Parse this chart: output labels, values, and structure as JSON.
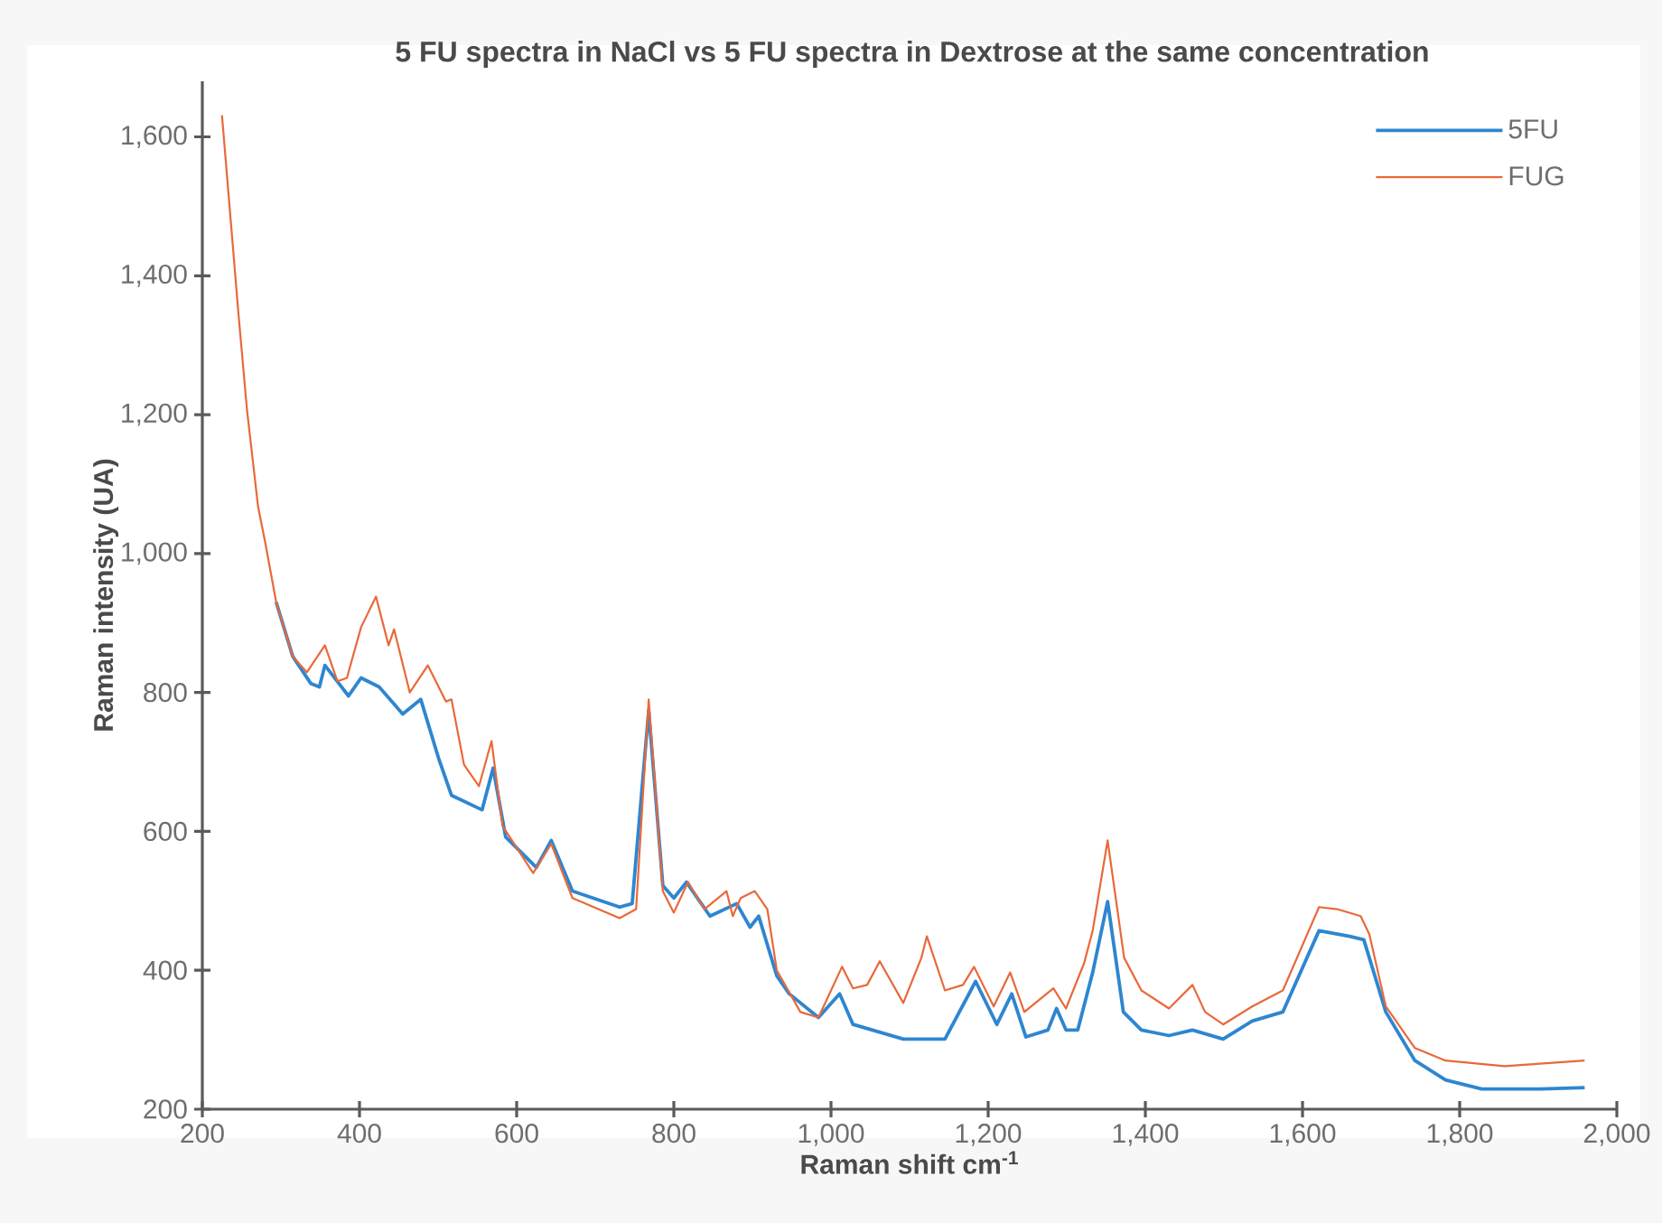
{
  "chart_data": {
    "type": "line",
    "title": "5 FU spectra in NaCl vs 5 FU spectra in Dextrose at the same concentration",
    "xlabel": "Raman shift cm$^{-1}$",
    "ylabel": "Raman intensity (UA)",
    "xlim": [
      200,
      2000
    ],
    "ylim": [
      200,
      1680
    ],
    "xticks": [
      200,
      {
        "value": 400,
        "label": "400"
      },
      {
        "value": 600,
        "label": "600"
      },
      {
        "value": 800,
        "label": "800"
      },
      {
        "value": 1000,
        "label": "1,000"
      },
      {
        "value": 1200,
        "label": "1,200"
      },
      {
        "value": 1400,
        "label": "1,400"
      },
      {
        "value": 1600,
        "label": "1,600"
      },
      {
        "value": 1800,
        "label": "1,800"
      },
      {
        "value": 2000,
        "label": "2,000"
      }
    ],
    "yticks": [
      200,
      400,
      600,
      800,
      {
        "value": 1000,
        "label": "1,000"
      },
      {
        "value": 1200,
        "label": "1,200"
      },
      {
        "value": 1400,
        "label": "1,400"
      },
      {
        "value": 1600,
        "label": "1,600"
      }
    ],
    "grid": false,
    "legend": "top right",
    "marker": "none",
    "line_style": "solid",
    "series": [
      {
        "name": "5FU",
        "color": "#2e86d0",
        "x": [
          294,
          315,
          338,
          349,
          356,
          386,
          402,
          425,
          455,
          478,
          501,
          517,
          556,
          570,
          586,
          625,
          644,
          671,
          731,
          747,
          768,
          786,
          800,
          816,
          846,
          880,
          897,
          908,
          931,
          947,
          984,
          1011,
          1028,
          1092,
          1145,
          1184,
          1211,
          1230,
          1248,
          1276,
          1287,
          1299,
          1314,
          1333,
          1352,
          1372,
          1395,
          1430,
          1460,
          1499,
          1536,
          1575,
          1621,
          1660,
          1678,
          1706,
          1743,
          1782,
          1828,
          1903,
          1959
        ],
        "values": [
          930,
          852,
          813,
          808,
          839,
          795,
          821,
          808,
          769,
          790,
          704,
          652,
          631,
          691,
          592,
          548,
          587,
          514,
          491,
          496,
          774,
          522,
          504,
          527,
          478,
          496,
          462,
          478,
          392,
          366,
          332,
          366,
          322,
          301,
          301,
          384,
          322,
          366,
          304,
          314,
          345,
          314,
          314,
          397,
          499,
          340,
          314,
          306,
          314,
          301,
          327,
          340,
          457,
          449,
          444,
          340,
          270,
          242,
          229,
          229,
          231
        ]
      },
      {
        "name": "FUG",
        "color": "#e8693a",
        "x": [
          225,
          246,
          257,
          271,
          280,
          294,
          315,
          333,
          356,
          372,
          384,
          402,
          421,
          437,
          444,
          464,
          487,
          510,
          517,
          533,
          552,
          568,
          582,
          621,
          644,
          671,
          731,
          752,
          768,
          786,
          800,
          818,
          839,
          867,
          875,
          885,
          903,
          919,
          931,
          961,
          984,
          1014,
          1028,
          1046,
          1062,
          1092,
          1115,
          1122,
          1145,
          1168,
          1182,
          1207,
          1228,
          1246,
          1283,
          1299,
          1322,
          1333,
          1352,
          1373,
          1395,
          1430,
          1460,
          1476,
          1499,
          1536,
          1575,
          1621,
          1644,
          1674,
          1685,
          1706,
          1743,
          1782,
          1857,
          1959
        ],
        "values": [
          1631,
          1345,
          1205,
          1067,
          1016,
          930,
          852,
          829,
          868,
          816,
          821,
          894,
          938,
          868,
          891,
          800,
          839,
          787,
          790,
          696,
          665,
          730,
          608,
          540,
          582,
          504,
          475,
          488,
          790,
          514,
          483,
          527,
          488,
          514,
          478,
          504,
          514,
          488,
          400,
          340,
          332,
          405,
          374,
          379,
          413,
          353,
          418,
          449,
          371,
          379,
          405,
          348,
          397,
          340,
          374,
          345,
          410,
          457,
          587,
          418,
          371,
          345,
          379,
          340,
          322,
          348,
          371,
          491,
          488,
          478,
          452,
          348,
          288,
          270,
          262,
          270
        ]
      }
    ]
  }
}
